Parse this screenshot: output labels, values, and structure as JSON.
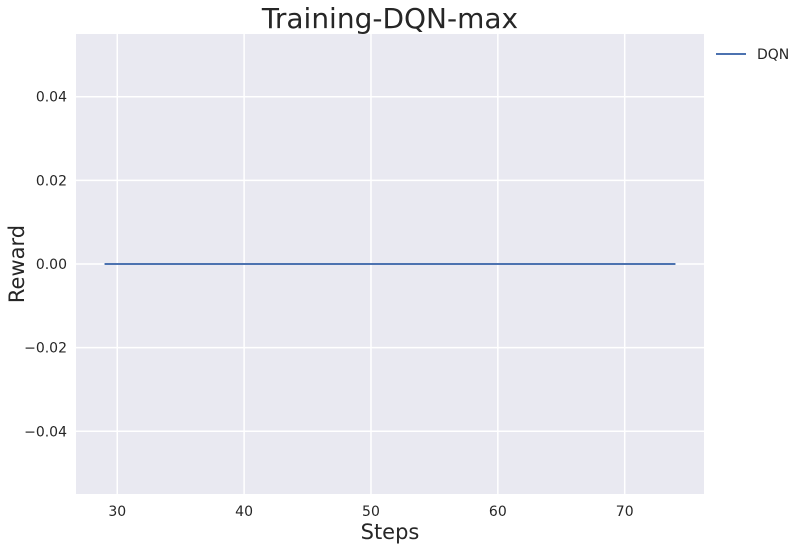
{
  "chart_data": {
    "type": "line",
    "title": "Training-DQN-max",
    "xlabel": "Steps",
    "ylabel": "Reward",
    "xlim": [
      26.75,
      76.25
    ],
    "ylim": [
      -0.055,
      0.055
    ],
    "xticks": [
      30,
      40,
      50,
      60,
      70
    ],
    "xtick_labels": [
      "30",
      "40",
      "50",
      "60",
      "70"
    ],
    "yticks": [
      0.04,
      0.02,
      0.0,
      -0.02,
      -0.04
    ],
    "ytick_labels": [
      "0.04",
      "0.02",
      "0.00",
      "−0.02",
      "−0.04"
    ],
    "grid": true,
    "legend_position": "outside-top-right",
    "background_color": "#e9e9f1",
    "grid_color": "#ffffff",
    "series": [
      {
        "name": "DQN",
        "color": "#4c72b0",
        "x": [
          29,
          74
        ],
        "y": [
          0.0,
          0.0
        ]
      }
    ]
  }
}
